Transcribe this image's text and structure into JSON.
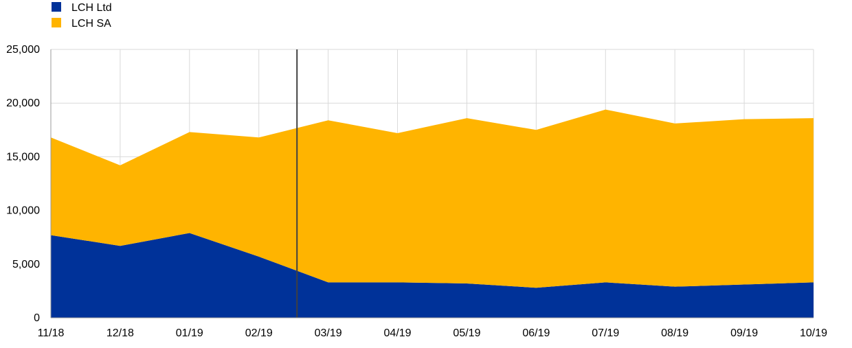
{
  "chart_data": {
    "type": "area",
    "stacked": true,
    "title": "",
    "xlabel": "",
    "ylabel": "",
    "categories": [
      "11/18",
      "12/18",
      "01/19",
      "02/19",
      "03/19",
      "04/19",
      "05/19",
      "06/19",
      "07/19",
      "08/19",
      "09/19",
      "10/19"
    ],
    "series": [
      {
        "name": "LCH Ltd",
        "color": "#003299",
        "values": [
          7700,
          6700,
          7900,
          5700,
          3300,
          3300,
          3200,
          2800,
          3300,
          2900,
          3100,
          3300
        ]
      },
      {
        "name": "LCH SA",
        "color": "#FFB400",
        "values": [
          9100,
          7500,
          9400,
          11100,
          15100,
          13900,
          15400,
          14700,
          16100,
          15200,
          15400,
          15300
        ]
      }
    ],
    "ylim": [
      0,
      25000
    ],
    "yticks": [
      0,
      5000,
      10000,
      15000,
      20000,
      25000
    ],
    "ytick_labels": [
      "0",
      "5,000",
      "10,000",
      "15,000",
      "20,000",
      "25,000"
    ],
    "grid": true,
    "legend_position": "top-left",
    "annotations": [
      {
        "type": "vertical-line",
        "x_between": [
          "02/19",
          "03/19"
        ],
        "position": 0.55,
        "color": "#404040"
      }
    ]
  }
}
